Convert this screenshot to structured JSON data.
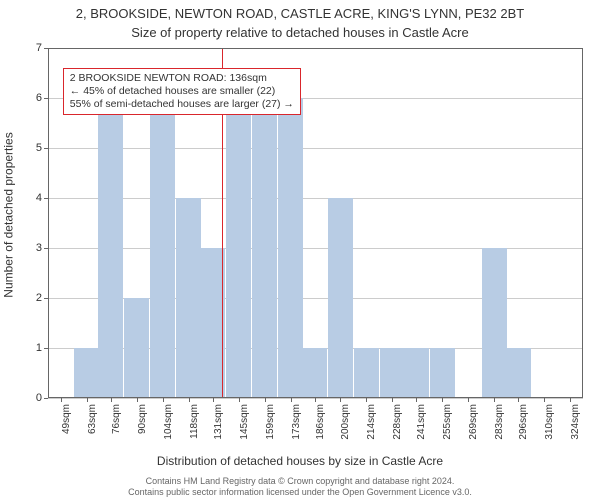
{
  "chart": {
    "type": "histogram",
    "title_line1": "2, BROOKSIDE, NEWTON ROAD, CASTLE ACRE, KING'S LYNN, PE32 2BT",
    "title_line2": "Size of property relative to detached houses in Castle Acre",
    "title_fontsize": 13,
    "ylabel": "Number of detached properties",
    "xlabel": "Distribution of detached houses by size in Castle Acre",
    "axis_label_fontsize": 12,
    "background_color": "#ffffff",
    "border_color": "#666666",
    "grid_color": "#cccccc",
    "bar_color": "#b8cce4",
    "refline_color": "#d9262c",
    "annotation_border_color": "#d9262c",
    "annotation_bg": "#ffffff",
    "tick_fontsize": 11,
    "xlim": [
      42,
      331
    ],
    "ylim": [
      0,
      7
    ],
    "yticks": [
      0,
      1,
      2,
      3,
      4,
      5,
      6,
      7
    ],
    "xticks": [
      49,
      63,
      76,
      90,
      104,
      118,
      131,
      145,
      159,
      173,
      186,
      200,
      214,
      228,
      241,
      255,
      269,
      283,
      296,
      310,
      324
    ],
    "xtick_labels": [
      "49sqm",
      "63sqm",
      "76sqm",
      "90sqm",
      "104sqm",
      "118sqm",
      "131sqm",
      "145sqm",
      "159sqm",
      "173sqm",
      "186sqm",
      "200sqm",
      "214sqm",
      "228sqm",
      "241sqm",
      "255sqm",
      "269sqm",
      "283sqm",
      "296sqm",
      "310sqm",
      "324sqm"
    ],
    "bin_width_sqm": 13.5,
    "bars": [
      {
        "center": 49,
        "count": 0
      },
      {
        "center": 63,
        "count": 1
      },
      {
        "center": 76,
        "count": 6
      },
      {
        "center": 90,
        "count": 2
      },
      {
        "center": 104,
        "count": 6
      },
      {
        "center": 118,
        "count": 4
      },
      {
        "center": 131,
        "count": 3
      },
      {
        "center": 145,
        "count": 6
      },
      {
        "center": 159,
        "count": 6
      },
      {
        "center": 173,
        "count": 6
      },
      {
        "center": 186,
        "count": 1
      },
      {
        "center": 200,
        "count": 4
      },
      {
        "center": 214,
        "count": 1
      },
      {
        "center": 228,
        "count": 1
      },
      {
        "center": 241,
        "count": 1
      },
      {
        "center": 255,
        "count": 1
      },
      {
        "center": 269,
        "count": 0
      },
      {
        "center": 283,
        "count": 3
      },
      {
        "center": 296,
        "count": 1
      },
      {
        "center": 310,
        "count": 0
      },
      {
        "center": 324,
        "count": 0
      }
    ],
    "reference_value": 136,
    "annotation": {
      "line1": "2 BROOKSIDE NEWTON ROAD: 136sqm",
      "line2": "← 45% of detached houses are smaller (22)",
      "line3": "55% of semi-detached houses are larger (27) →",
      "x_sqm": 50,
      "y_count": 6.6,
      "fontsize": 10.5
    }
  },
  "footer": {
    "line1": "Contains HM Land Registry data © Crown copyright and database right 2024.",
    "line2": "Contains public sector information licensed under the Open Government Licence v3.0.",
    "color": "#666666",
    "fontsize": 9
  }
}
